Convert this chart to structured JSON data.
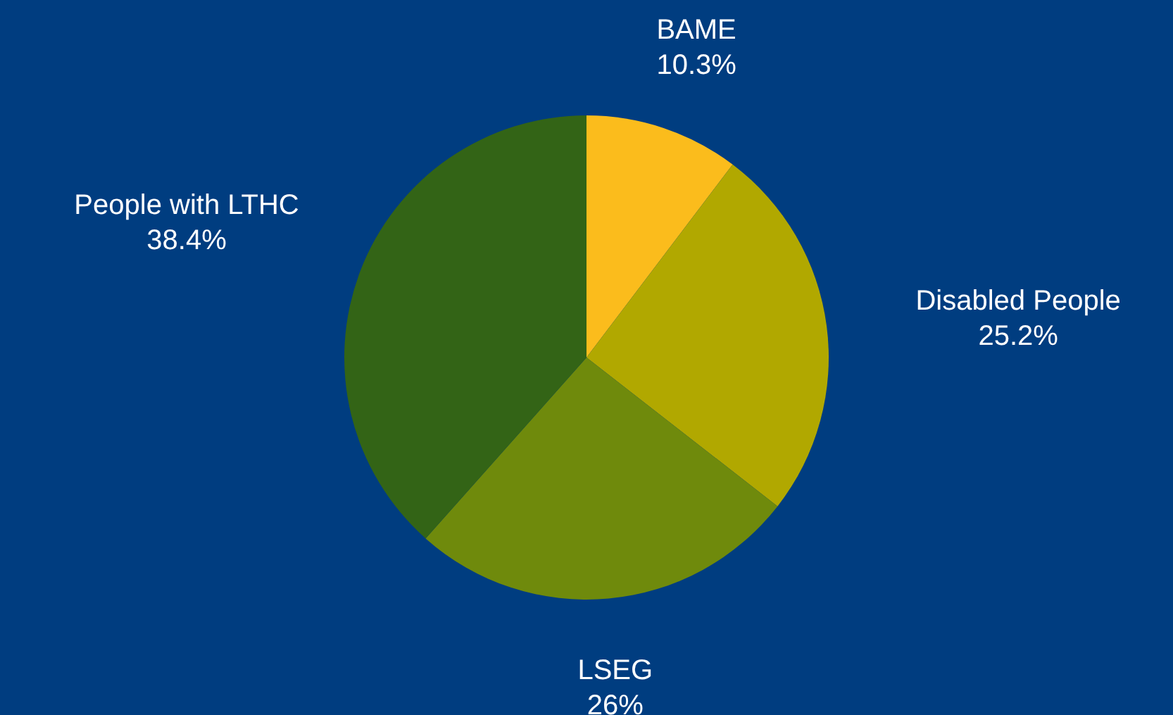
{
  "chart_data": {
    "type": "pie",
    "categories": [
      "BAME",
      "Disabled People",
      "LSEG",
      "People with LTHC"
    ],
    "values": [
      10.3,
      25.2,
      26,
      38.4
    ],
    "value_labels": [
      "10.3%",
      "25.2%",
      "26%",
      "38.4%"
    ],
    "colors": [
      "#fbbc1c",
      "#b1a800",
      "#6f8a0c",
      "#336416"
    ]
  }
}
